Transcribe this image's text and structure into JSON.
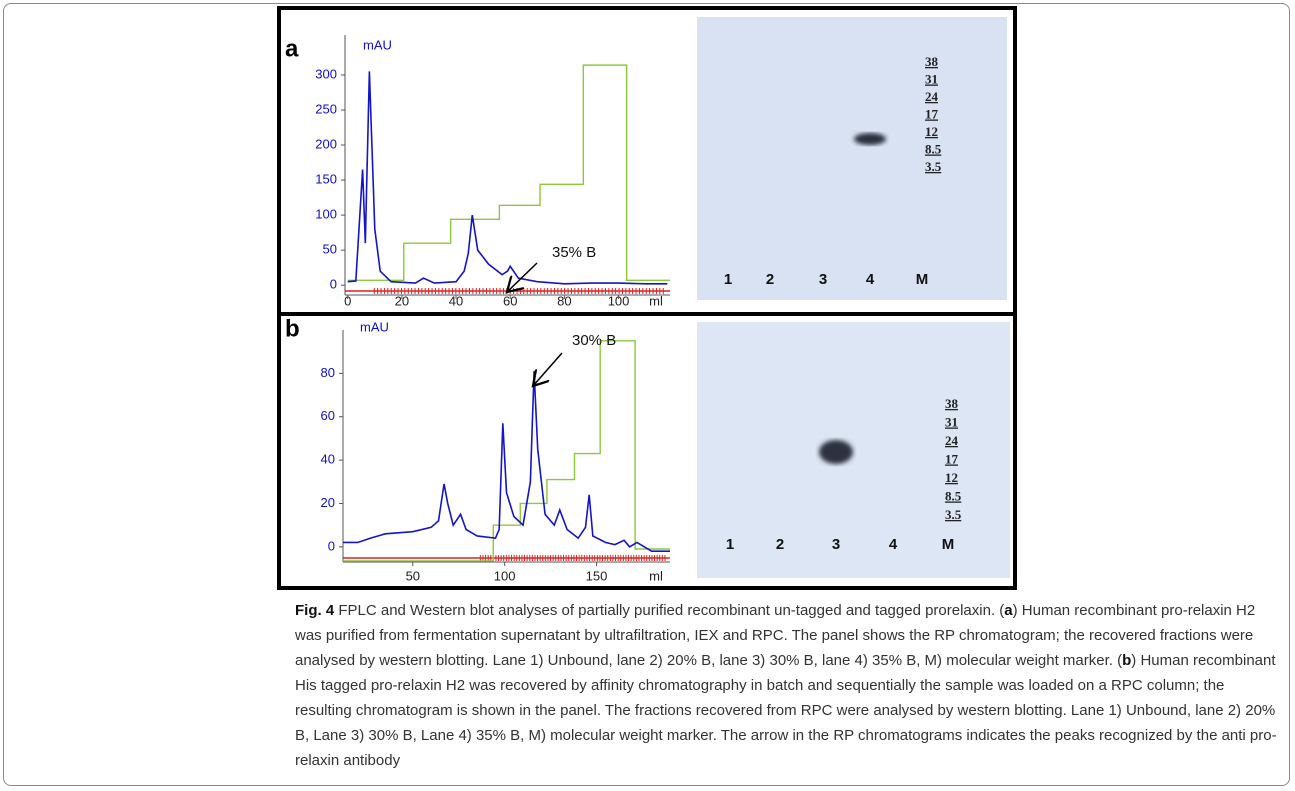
{
  "panels": [
    {
      "letter": "a",
      "chart_data": {
        "type": "line",
        "ylabel": "mAU",
        "xlabel": "ml",
        "annotation": "35% B",
        "xlim": [
          -1,
          119
        ],
        "ylim": [
          -14,
          357
        ],
        "xticks": [
          0,
          20,
          40,
          60,
          80,
          100
        ],
        "yticks": [
          0,
          50,
          100,
          150,
          200,
          250,
          300
        ],
        "series": [
          {
            "color": "#1414c8",
            "x": [
              0,
              3,
              5.5,
              6.5,
              8,
              10,
              12,
              16,
              25,
              28,
              32,
              40,
              43,
              44.5,
              46,
              48,
              52,
              57,
              59,
              60,
              63,
              70,
              80,
              90,
              100,
              110,
              118
            ],
            "values": [
              5,
              6,
              165,
              60,
              305,
              80,
              20,
              5,
              3,
              10,
              3,
              5,
              20,
              45,
              100,
              50,
              30,
              15,
              20,
              27,
              10,
              5,
              2,
              3,
              3,
              2,
              2
            ]
          },
          {
            "color": "#8cc83c",
            "x": [
              0,
              20.7,
              20.7,
              38,
              38,
              56,
              56,
              71,
              71,
              87,
              87,
              103,
              103,
              119
            ],
            "values": [
              7,
              7,
              60,
              60,
              94,
              94,
              114,
              114,
              144,
              144,
              314,
              314,
              7,
              7
            ]
          }
        ]
      },
      "blot": {
        "lanes": [
          "1",
          "2",
          "3",
          "4",
          "M"
        ],
        "markers": [
          "38",
          "31",
          "24",
          "17",
          "12",
          "8.5",
          "3.5"
        ]
      }
    },
    {
      "letter": "b",
      "chart_data": {
        "type": "line",
        "ylabel": "mAU",
        "xlabel": "ml",
        "annotation": "30% B",
        "xlim": [
          12,
          190
        ],
        "ylim": [
          -7,
          100
        ],
        "xticks": [
          50,
          100,
          150
        ],
        "yticks": [
          0,
          20,
          40,
          60,
          80
        ],
        "series": [
          {
            "color": "#1414c8",
            "x": [
              12,
              20,
              27,
              35,
              50,
              60,
              64,
              67,
              69,
              72,
              76,
              79,
              85,
              95,
              97,
              99,
              101,
              105,
              110,
              114,
              116,
              118,
              122,
              127,
              130,
              134,
              140,
              144,
              146,
              148,
              155,
              160,
              165,
              168,
              172,
              180,
              190
            ],
            "values": [
              2,
              2,
              4,
              6,
              7,
              9,
              12,
              29,
              20,
              10,
              15,
              8,
              5,
              4,
              8,
              57,
              25,
              14,
              10,
              30,
              81,
              45,
              15,
              10,
              17,
              8,
              4,
              9,
              24,
              5,
              2,
              1,
              3,
              0,
              2,
              -2,
              -2
            ]
          },
          {
            "color": "#8cc83c",
            "x": [
              12,
              93.8,
              93.8,
              108.5,
              108.5,
              123,
              123,
              138,
              138,
              152,
              152,
              171,
              171,
              190
            ],
            "values": [
              -6.5,
              -6.5,
              10,
              10,
              20,
              20,
              31,
              31,
              43,
              43,
              95,
              95,
              -1,
              -1
            ]
          }
        ]
      },
      "blot": {
        "lanes": [
          "1",
          "2",
          "3",
          "4",
          "M"
        ],
        "markers": [
          "38",
          "31",
          "24",
          "17",
          "12",
          "8.5",
          "3.5"
        ]
      }
    }
  ],
  "caption": {
    "label": "Fig. 4",
    "segments": [
      {
        "text": " FPLC and Western blot analyses of partially purified recombinant un-tagged and tagged prorelaxin. (",
        "bold": false
      },
      {
        "text": "a",
        "bold": true
      },
      {
        "text": ") Human recombinant pro-relaxin H2 was purified from fermentation supernatant by ultrafiltration, IEX and RPC. The panel shows the RP chromatogram; the recovered fractions were analysed by western blotting. Lane 1) Unbound, lane 2) 20% B, lane 3) 30% B, lane 4) 35% B, M) molecular weight marker. (",
        "bold": false
      },
      {
        "text": "b",
        "bold": true
      },
      {
        "text": ") Human recombinant His tagged pro-relaxin H2 was recovered by affinity chromatography in batch and sequentially the sample was loaded on a RPC column; the resulting chromatogram is shown in the panel. The fractions recovered from RPC were analysed by western blotting. Lane 1) Unbound, lane 2) 20% B, Lane 3) 30% B, Lane 4) 35% B, M) molecular weight marker. The arrow in the RP chromatograms indicates the peaks recognized by the anti pro-relaxin antibody",
        "bold": false
      }
    ]
  }
}
